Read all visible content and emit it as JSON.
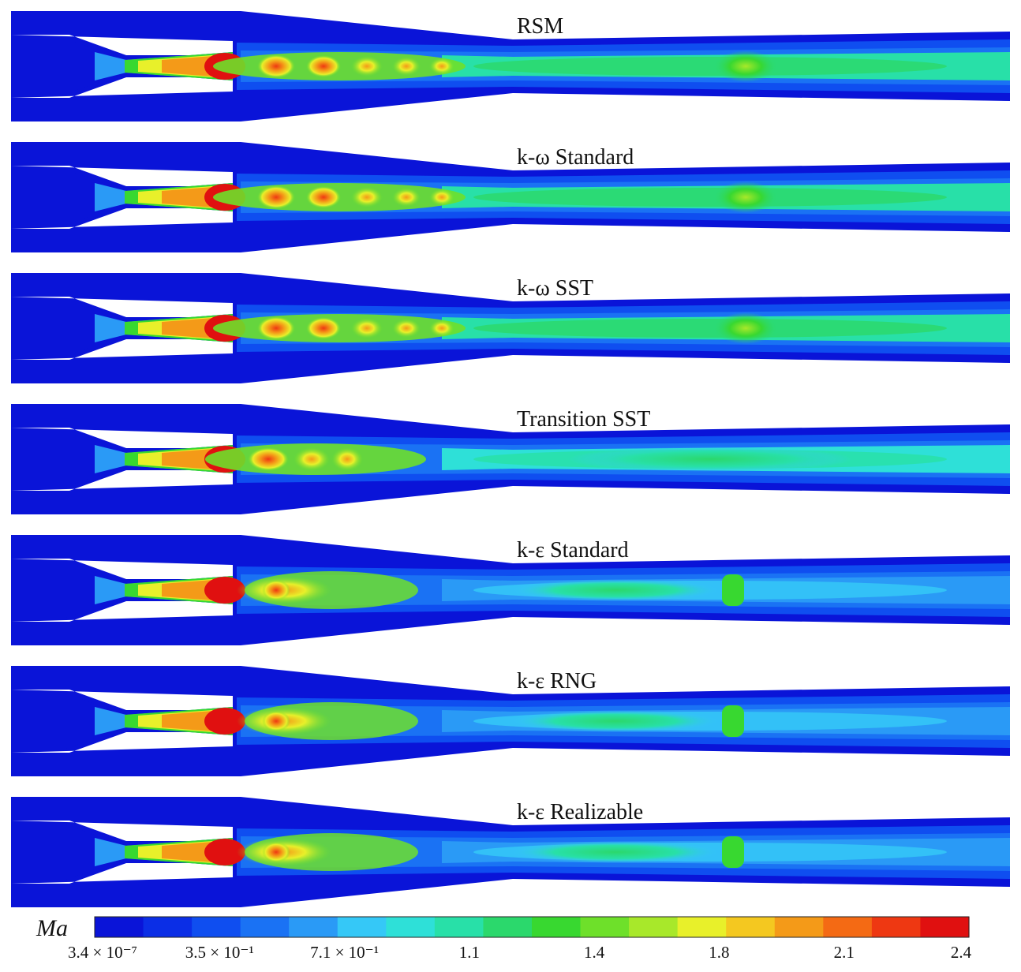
{
  "figure": {
    "variable_label": "Ma",
    "panels": [
      {
        "id": "rsm",
        "title": "RSM",
        "model": "rsm"
      },
      {
        "id": "kw-standard",
        "title": "k-ω Standard",
        "model": "kw"
      },
      {
        "id": "kw-sst",
        "title": "k-ω SST",
        "model": "kw"
      },
      {
        "id": "transition-sst",
        "title": "Transition SST",
        "model": "trans"
      },
      {
        "id": "ke-standard",
        "title": "k-ε Standard",
        "model": "ke"
      },
      {
        "id": "ke-rng",
        "title": "k-ε RNG",
        "model": "ke"
      },
      {
        "id": "ke-realizable",
        "title": "k-ε Realizable",
        "model": "real"
      }
    ],
    "colorbar": {
      "min": 3.4e-07,
      "max": 2.4,
      "tick_labels": [
        "3.4 × 10⁻⁷",
        "3.5 × 10⁻¹",
        "7.1 × 10⁻¹",
        "1.1",
        "1.4",
        "1.8",
        "2.1",
        "2.4"
      ],
      "colors": [
        "#0a14d8",
        "#0b2ee6",
        "#0f4ef0",
        "#1a72f4",
        "#2a9af6",
        "#35c8f7",
        "#2ee0d8",
        "#28e0a8",
        "#2bd86c",
        "#38d830",
        "#6ee02a",
        "#a8e82a",
        "#e8f02a",
        "#f4c820",
        "#f49a18",
        "#f46a14",
        "#ee3812",
        "#e01010"
      ]
    }
  }
}
